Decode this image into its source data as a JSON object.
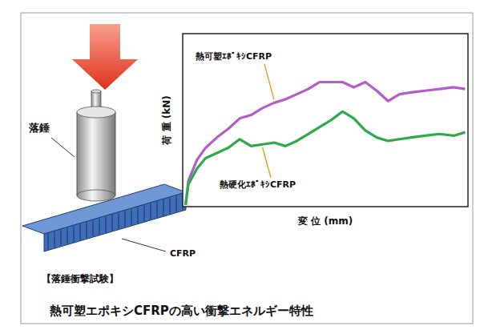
{
  "chart_data": {
    "type": "line",
    "title": "熱可塑エポキシCFRPの高い衝撃エネルギー特性",
    "x_label": "変 位 (mm)",
    "y_label": "荷 重 (kN)",
    "annotations": [
      "落錘",
      "CFRP",
      "【落錘衝撃試験】"
    ],
    "x": [
      1,
      2,
      5,
      8,
      12,
      16,
      20,
      24,
      28,
      32,
      36,
      40,
      44,
      48,
      52,
      56,
      60,
      64,
      68,
      72,
      76,
      80,
      85,
      90,
      95,
      99
    ],
    "series": [
      {
        "name": "熱可塑ｴﾎﾟｷｼCFRP",
        "color": "#b45cc8",
        "values": [
          1,
          15,
          27,
          34,
          40,
          45,
          51,
          53,
          57,
          60,
          62,
          65,
          68,
          72,
          72,
          72,
          69,
          72,
          67,
          61,
          65,
          66,
          67,
          68,
          69,
          68
        ]
      },
      {
        "name": "熱硬化ｴﾎﾟｷｼCFRP",
        "color": "#2eaa4a",
        "values": [
          1,
          13,
          22,
          28,
          31,
          34,
          39,
          35,
          36,
          37,
          35,
          38,
          42,
          46,
          50,
          55,
          51,
          44,
          40,
          38,
          39,
          40,
          41,
          42,
          41,
          43
        ]
      }
    ],
    "xlim": [
      0,
      100
    ],
    "ylim": [
      0,
      100
    ],
    "tick_labels": false,
    "grid": false
  }
}
